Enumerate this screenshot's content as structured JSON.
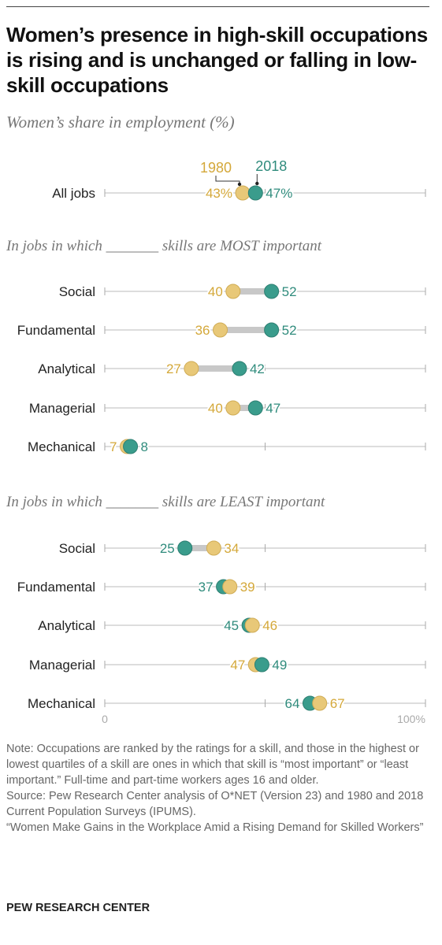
{
  "page": {
    "title": "Women’s presence in high-skill occupations is rising and is unchanged or falling in low-skill occupations",
    "subtitle": "Women’s share in employment (%)",
    "note": "Note: Occupations are ranked by the ratings for a skill, and those in the highest or lowest quartiles of a skill are ones in which that skill is “most important” or “least important.” Full-time and part-time workers ages 16 and older.",
    "source": "Source: Pew Research Center analysis of O*NET (Version 23) and 1980 and 2018 Current Population Surveys (IPUMS).",
    "report": "“Women Make Gains in the Workplace Amid a Rising Demand for Skilled Workers”",
    "footer": "PEW RESEARCH CENTER"
  },
  "chart_data": {
    "type": "dot",
    "title": "Women’s presence in high-skill occupations is rising and is unchanged or falling in low-skill occupations",
    "ylabel": "Women’s share in employment (%)",
    "xlim": [
      0,
      100
    ],
    "x_tick_labels": [
      "0",
      "100%"
    ],
    "legend": [
      {
        "name": "1980",
        "color": "#e8c878"
      },
      {
        "name": "2018",
        "color": "#3a9c8c"
      }
    ],
    "groups": [
      {
        "label": "",
        "rows": [
          {
            "category": "All jobs",
            "v1980": 43,
            "v2018": 47,
            "label1980": "43%",
            "label2018": "47%"
          }
        ]
      },
      {
        "label": "In jobs in which _______ skills are MOST important",
        "rows": [
          {
            "category": "Social",
            "v1980": 40,
            "v2018": 52,
            "label1980": "40",
            "label2018": "52"
          },
          {
            "category": "Fundamental",
            "v1980": 36,
            "v2018": 52,
            "label1980": "36",
            "label2018": "52"
          },
          {
            "category": "Analytical",
            "v1980": 27,
            "v2018": 42,
            "label1980": "27",
            "label2018": "42"
          },
          {
            "category": "Managerial",
            "v1980": 40,
            "v2018": 47,
            "label1980": "40",
            "label2018": "47"
          },
          {
            "category": "Mechanical",
            "v1980": 7,
            "v2018": 8,
            "label1980": "7",
            "label2018": "8"
          }
        ]
      },
      {
        "label": "In jobs in which _______ skills are LEAST important",
        "rows": [
          {
            "category": "Social",
            "v1980": 34,
            "v2018": 25,
            "label1980": "34",
            "label2018": "25"
          },
          {
            "category": "Fundamental",
            "v1980": 39,
            "v2018": 37,
            "label1980": "39",
            "label2018": "37"
          },
          {
            "category": "Analytical",
            "v1980": 46,
            "v2018": 45,
            "label1980": "46",
            "label2018": "45"
          },
          {
            "category": "Managerial",
            "v1980": 47,
            "v2018": 49,
            "label1980": "47",
            "label2018": "49"
          },
          {
            "category": "Mechanical",
            "v1980": 67,
            "v2018": 64,
            "label1980": "67",
            "label2018": "64"
          }
        ]
      }
    ]
  }
}
